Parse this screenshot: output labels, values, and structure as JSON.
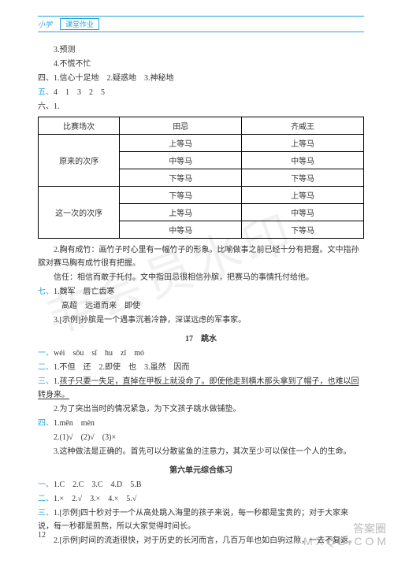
{
  "header": {
    "left": "小学",
    "right": "课堂作业"
  },
  "watermarks": {
    "main": "非会员水印",
    "corner_l1": "答案圈",
    "corner_l2": "M X Q E . C O M"
  },
  "top_lines": {
    "l1": "3.预测",
    "l2": "4.不慌不忙",
    "l3": "四、1.信心十足地　2.疑惑地　3.神秘地",
    "l4_prefix": "五、",
    "l4_body": "4　1　3　2　5",
    "l5": "六、1."
  },
  "table": {
    "headers": [
      "比赛场次",
      "田忌",
      "齐威王"
    ],
    "group1_label": "原来的次序",
    "group1_rows": [
      [
        "上等马",
        "上等马"
      ],
      [
        "中等马",
        "中等马"
      ],
      [
        "下等马",
        "下等马"
      ]
    ],
    "group2_label": "这一次的次序",
    "group2_rows": [
      [
        "下等马",
        "上等马"
      ],
      [
        "上等马",
        "中等马"
      ],
      [
        "中等马",
        "下等马"
      ]
    ]
  },
  "after_table": {
    "p1": "2.胸有成竹：画竹子时心里有一幅竹子的形象。比喻做事之前已经十分有把握。文中指孙膑对赛马胸有成竹很有把握。",
    "p2": "信任：相信而敢于托付。文中指田忌很相信孙膑，把赛马的事情托付给他。",
    "q7_prefix": "七、",
    "q7_1": "1.魏军　唇亡齿寒",
    "q7_2": "高超　远道而来　即使",
    "q7_3": "3.[示例]孙膑是一个遇事沉着冷静，深谋远虑的军事家。"
  },
  "section17": {
    "title": "17　跳水",
    "l1_prefix": "一、",
    "l1": "wéi　sōu　sī　hu　zī　mó",
    "l2_prefix": "二、",
    "l2": "1.不但　还　2.即使　也　3.虽然　因而",
    "l3_prefix": "三、",
    "l3a": "1.",
    "l3u": "孩子只要一失足，直掉在甲板上就没命了。即使他走到横木那头拿到了帽子，也难以回转身来。",
    "l4": "2.为了突出当时的情况紧急，为下文孩子跳水做铺垫。",
    "l5_prefix": "四、",
    "l5": "1.mēn　mèn",
    "l6": "2.(1)√　(2)√　(3)×",
    "l7": "3.这种做法是正确的。首先可以分散鲨鱼的注意力，其次至少可以保住一个人的生命。"
  },
  "unit6": {
    "title": "第六单元综合练习",
    "l1_prefix": "一、",
    "l1": "1.C　2.C　3.C　4.D　5.B",
    "l2_prefix": "二、",
    "l2": "1.×　2.√　3.×　4.×　5.√",
    "l3_prefix": "三、",
    "l3": "1.[示例]四十秒对于一个从高处跳入海里的孩子来说，每一秒都是宝贵的；对于大家来说，每一秒都是煎熬，所以大家觉得时间长。",
    "l4": "2.[示例]时间的流逝很快，对于历史的长河而言，几百万年也如白驹过隙，一去不复返。"
  },
  "page_number": "12"
}
